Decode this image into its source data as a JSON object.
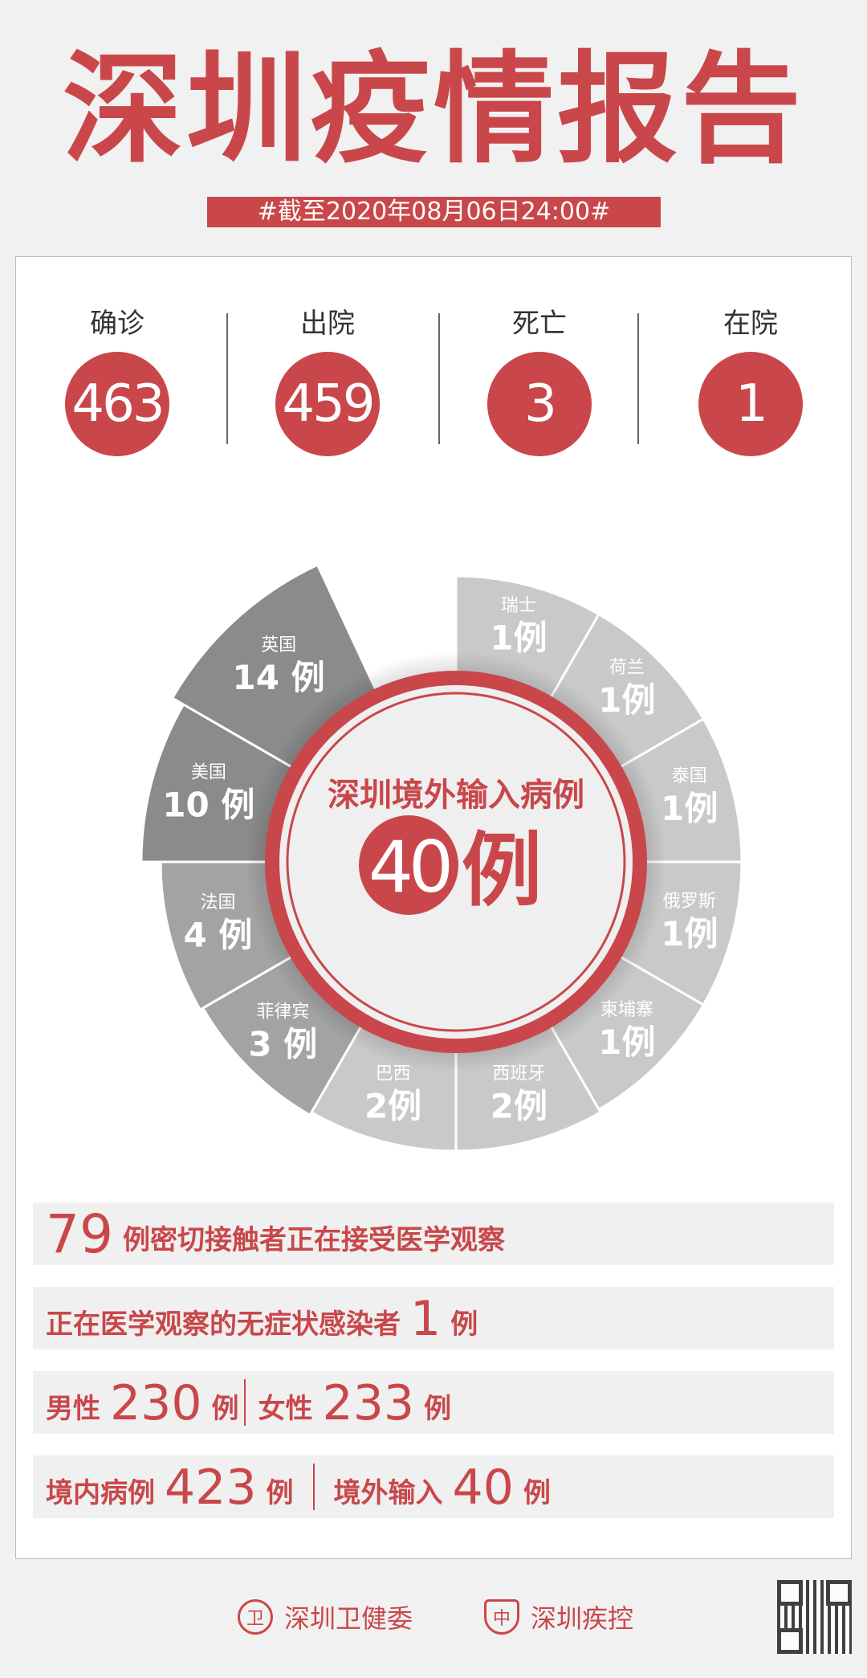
{
  "header": {
    "title": "深圳疫情报告",
    "date": "#截至2020年08月06日24:00#"
  },
  "stats": [
    {
      "label": "确诊",
      "value": "463"
    },
    {
      "label": "出院",
      "value": "459"
    },
    {
      "label": "死亡",
      "value": "3"
    },
    {
      "label": "在院",
      "value": "1"
    }
  ],
  "chart_data": {
    "type": "pie",
    "title": "深圳境外输入病例",
    "total": "40",
    "unit": "例",
    "categories": [
      "瑞士",
      "荷兰",
      "泰国",
      "俄罗斯",
      "柬埔寨",
      "西班牙",
      "巴西",
      "菲律宾",
      "法国",
      "美国",
      "英国"
    ],
    "values": [
      1,
      1,
      1,
      1,
      1,
      2,
      2,
      3,
      4,
      10,
      14
    ],
    "labels": [
      "1例",
      "1例",
      "1例",
      "1例",
      "1例",
      "2例",
      "2例",
      "3 例",
      "4 例",
      "10 例",
      "14 例"
    ],
    "colors": {
      "accent": "#c9474a",
      "high": "#8b8b8b",
      "mid": "#a3a3a3",
      "low": "#c9c9c9"
    }
  },
  "rows": {
    "contacts": {
      "num": "79",
      "text": "例密切接触者正在接受医学观察"
    },
    "asymptomatic": {
      "text": "正在医学观察的无症状感染者",
      "num": "1",
      "unit": "例"
    },
    "gender": {
      "male_label": "男性",
      "male": "230",
      "female_label": "女性",
      "female": "233",
      "unit": "例"
    },
    "origin": {
      "local_label": "境内病例",
      "local": "423",
      "imported_label": "境外输入",
      "imported": "40",
      "unit": "例"
    }
  },
  "footer": {
    "org1": "深圳卫健委",
    "org2": "深圳疾控"
  }
}
